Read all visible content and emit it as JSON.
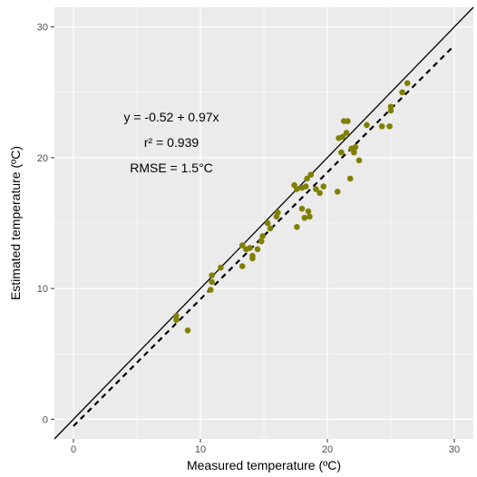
{
  "chart_data": {
    "type": "scatter",
    "title": "",
    "xlabel": "Measured temperature (ºC)",
    "ylabel": "Estimated temperature (ºC)",
    "xlim": [
      -1.5,
      31.5
    ],
    "ylim": [
      -1.5,
      31.5
    ],
    "x_ticks": [
      0,
      10,
      20,
      30
    ],
    "y_ticks": [
      0,
      10,
      20,
      30
    ],
    "x_tick_labels": [
      "0",
      "10",
      "20",
      "30"
    ],
    "y_tick_labels": [
      "0",
      "10",
      "20",
      "30"
    ],
    "grid": true,
    "legend": "none",
    "annotations": [
      "y = -0.52 + 0.97x",
      "r² = 0.939",
      "RMSE = 1.5°C"
    ],
    "reference_line": {
      "style": "solid",
      "intercept": 0,
      "slope": 1
    },
    "fit_line": {
      "style": "dashed",
      "intercept": -0.52,
      "slope": 0.97,
      "x_range": [
        0,
        30
      ]
    },
    "colors": {
      "points": "#808000",
      "panel": "#ebebeb",
      "grid": "#ffffff",
      "lines": "#000000"
    },
    "points": [
      {
        "x": 8.1,
        "y": 7.6
      },
      {
        "x": 8.1,
        "y": 7.9
      },
      {
        "x": 9.0,
        "y": 6.8
      },
      {
        "x": 10.8,
        "y": 9.9
      },
      {
        "x": 10.9,
        "y": 10.5
      },
      {
        "x": 10.9,
        "y": 11.0
      },
      {
        "x": 11.6,
        "y": 11.6
      },
      {
        "x": 13.3,
        "y": 11.7
      },
      {
        "x": 13.3,
        "y": 13.3
      },
      {
        "x": 13.6,
        "y": 13.0
      },
      {
        "x": 13.9,
        "y": 13.1
      },
      {
        "x": 14.1,
        "y": 12.3
      },
      {
        "x": 14.1,
        "y": 12.5
      },
      {
        "x": 14.5,
        "y": 13.0
      },
      {
        "x": 14.8,
        "y": 13.6
      },
      {
        "x": 14.9,
        "y": 14.0
      },
      {
        "x": 15.3,
        "y": 15.0
      },
      {
        "x": 15.5,
        "y": 14.6
      },
      {
        "x": 16.0,
        "y": 15.5
      },
      {
        "x": 16.1,
        "y": 15.8
      },
      {
        "x": 17.4,
        "y": 17.9
      },
      {
        "x": 17.6,
        "y": 14.7
      },
      {
        "x": 17.6,
        "y": 17.6
      },
      {
        "x": 18.0,
        "y": 16.1
      },
      {
        "x": 18.0,
        "y": 17.7
      },
      {
        "x": 18.2,
        "y": 15.4
      },
      {
        "x": 18.3,
        "y": 17.8
      },
      {
        "x": 18.4,
        "y": 18.4
      },
      {
        "x": 18.5,
        "y": 15.9
      },
      {
        "x": 18.6,
        "y": 15.5
      },
      {
        "x": 18.7,
        "y": 18.7
      },
      {
        "x": 19.1,
        "y": 17.6
      },
      {
        "x": 19.4,
        "y": 17.3
      },
      {
        "x": 19.7,
        "y": 17.8
      },
      {
        "x": 20.8,
        "y": 17.4
      },
      {
        "x": 20.9,
        "y": 21.5
      },
      {
        "x": 21.1,
        "y": 20.4
      },
      {
        "x": 21.2,
        "y": 21.6
      },
      {
        "x": 21.3,
        "y": 22.8
      },
      {
        "x": 21.5,
        "y": 21.9
      },
      {
        "x": 21.6,
        "y": 22.8
      },
      {
        "x": 21.8,
        "y": 18.4
      },
      {
        "x": 21.9,
        "y": 20.7
      },
      {
        "x": 22.1,
        "y": 20.4
      },
      {
        "x": 22.2,
        "y": 20.8
      },
      {
        "x": 22.5,
        "y": 19.8
      },
      {
        "x": 23.1,
        "y": 22.5
      },
      {
        "x": 24.3,
        "y": 22.4
      },
      {
        "x": 24.9,
        "y": 22.4
      },
      {
        "x": 25.0,
        "y": 23.6
      },
      {
        "x": 25.0,
        "y": 23.9
      },
      {
        "x": 25.9,
        "y": 25.0
      },
      {
        "x": 26.3,
        "y": 25.7
      }
    ]
  }
}
